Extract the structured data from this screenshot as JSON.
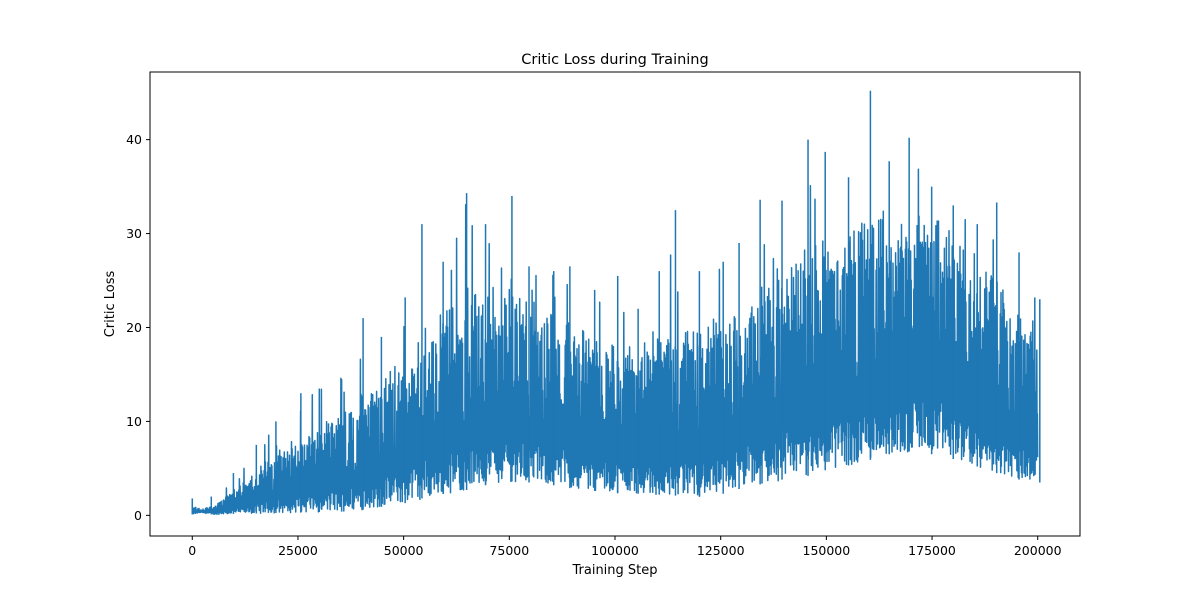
{
  "chart_data": {
    "type": "line",
    "title": "Critic Loss during Training",
    "xlabel": "Training Step",
    "ylabel": "Critic Loss",
    "xlim": [
      -10000,
      210000
    ],
    "ylim": [
      -2.2,
      47.2
    ],
    "xticks": [
      0,
      25000,
      50000,
      75000,
      100000,
      125000,
      150000,
      175000,
      200000
    ],
    "xtick_labels": [
      "0",
      "25000",
      "50000",
      "75000",
      "100000",
      "125000",
      "150000",
      "175000",
      "200000"
    ],
    "yticks": [
      0,
      10,
      20,
      30,
      40
    ],
    "ytick_labels": [
      "0",
      "10",
      "20",
      "30",
      "40"
    ],
    "grid": false,
    "legend": "none",
    "color": "#1f77b4",
    "series": [
      {
        "style": "dense noisy band (values estimated from the envelope)",
        "x": [
          0,
          2000,
          5000,
          10000,
          15000,
          20000,
          25000,
          30000,
          35000,
          40000,
          45000,
          50000,
          55000,
          60000,
          65000,
          70000,
          75000,
          80000,
          85000,
          90000,
          95000,
          100000,
          105000,
          110000,
          115000,
          120000,
          125000,
          130000,
          135000,
          140000,
          145000,
          150000,
          155000,
          160000,
          165000,
          170000,
          175000,
          180000,
          185000,
          190000,
          195000,
          200000
        ],
        "lower": [
          0.1,
          0.3,
          0.1,
          0.15,
          0.2,
          0.25,
          0.3,
          0.35,
          0.4,
          0.6,
          0.9,
          1.3,
          1.8,
          2.3,
          2.7,
          3.2,
          3.6,
          3.5,
          3.2,
          2.9,
          2.6,
          2.4,
          2.3,
          2.2,
          2.1,
          2.0,
          2.3,
          2.8,
          3.3,
          3.8,
          4.2,
          4.8,
          5.3,
          5.9,
          6.5,
          6.8,
          6.5,
          6.0,
          5.2,
          4.5,
          3.8,
          3.5
        ],
        "typical_high": [
          1.0,
          0.6,
          1.0,
          2.5,
          4.5,
          6.5,
          8.0,
          9.0,
          10.5,
          12.0,
          14.0,
          16.0,
          19.0,
          21.0,
          22.0,
          23.0,
          23.5,
          22.0,
          20.5,
          19.5,
          18.5,
          17.5,
          17.5,
          18.0,
          18.5,
          19.0,
          20.5,
          22.0,
          24.0,
          26.0,
          27.0,
          28.0,
          29.0,
          30.0,
          30.5,
          31.0,
          30.5,
          29.0,
          26.5,
          24.0,
          21.0,
          19.0
        ],
        "peaks": [
          1.8,
          0.8,
          2.0,
          4.5,
          7.5,
          10.0,
          13.0,
          13.5,
          14.5,
          21.0,
          19.0,
          23.2,
          31.0,
          27.0,
          34.3,
          31.0,
          34.0,
          26.5,
          26.0,
          26.5,
          24.0,
          25.5,
          22.0,
          26.0,
          32.5,
          26.0,
          27.0,
          29.0,
          33.6,
          33.5,
          40.0,
          38.7,
          36.0,
          45.2,
          37.7,
          40.2,
          35.0,
          33.0,
          31.0,
          33.3,
          28.0,
          23.0
        ]
      }
    ]
  }
}
